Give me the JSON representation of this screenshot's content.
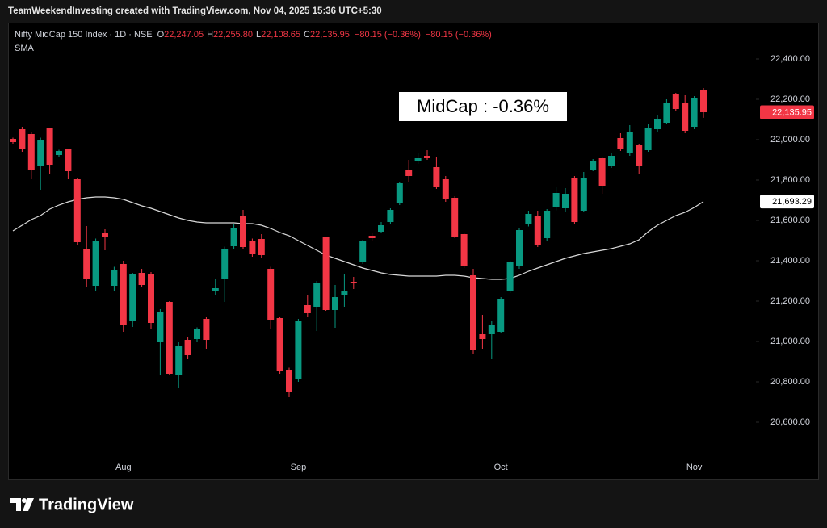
{
  "header": "TeamWeekendInvesting created with TradingView.com, Nov 04, 2025 15:36 UTC+5:30",
  "chart_data": {
    "type": "candlestick",
    "title": "Nifty MidCap 150 Index · 1D · NSE",
    "legend_items": [
      {
        "key": "O",
        "text": "22,247.05"
      },
      {
        "key": "H",
        "text": "22,255.80"
      },
      {
        "key": "L",
        "text": "22,108.65"
      },
      {
        "key": "C",
        "text": "22,135.95"
      }
    ],
    "changes": [
      "−80.15 (−0.36%)",
      "−80.15 (−0.36%)"
    ],
    "annotation": "MidCap : -0.36%",
    "up_color": "#089981",
    "down_color": "#f23645",
    "categories": [
      null,
      null,
      null,
      null,
      null,
      null,
      null,
      null,
      null,
      null,
      null,
      null,
      "Aug",
      null,
      null,
      null,
      null,
      null,
      null,
      null,
      null,
      null,
      null,
      null,
      null,
      null,
      null,
      null,
      null,
      null,
      null,
      "Sep",
      null,
      null,
      null,
      null,
      null,
      null,
      null,
      null,
      null,
      null,
      null,
      null,
      null,
      null,
      null,
      null,
      null,
      null,
      null,
      null,
      null,
      "Oct",
      null,
      null,
      null,
      null,
      null,
      null,
      null,
      null,
      null,
      null,
      null,
      null,
      null,
      null,
      null,
      null,
      null,
      null,
      null,
      null,
      "Nov",
      null
    ],
    "open": [
      22004,
      22052,
      22028,
      21868,
      22056,
      21924,
      21952,
      21804,
      21460,
      21276,
      21540,
      21276,
      21384,
      21100,
      21340,
      21332,
      21000,
      21196,
      20832,
      21008,
      21012,
      21112,
      21248,
      21312,
      21472,
      21620,
      21500,
      21508,
      21360,
      21116,
      20860,
      20812,
      21180,
      21172,
      21516,
      21156,
      21232,
      21296,
      21392,
      21524,
      21544,
      21592,
      21684,
      21852,
      21892,
      21920,
      21864,
      21804,
      21712,
      21532,
      21328,
      21036,
      21036,
      21048,
      21248,
      21376,
      21580,
      21620,
      21512,
      21664,
      21660,
      21808,
      21648,
      21852,
      21908,
      21868,
      22008,
      21932,
      21972,
      21948,
      22052,
      22084,
      22224,
      22180,
      22064,
      22247.05
    ],
    "high": [
      22010,
      22064,
      22040,
      22010,
      22060,
      21950,
      21952,
      21808,
      21572,
      21510,
      21556,
      21370,
      21400,
      21340,
      21360,
      21344,
      21160,
      21200,
      21000,
      21020,
      21070,
      21120,
      21312,
      21470,
      21580,
      21652,
      21510,
      21532,
      21370,
      21120,
      20870,
      21112,
      21232,
      21300,
      21520,
      21280,
      21332,
      21320,
      21504,
      21540,
      21592,
      21660,
      21792,
      21900,
      21932,
      21948,
      21912,
      21820,
      21720,
      21536,
      21360,
      21132,
      21100,
      21220,
      21400,
      21560,
      21648,
      21648,
      21656,
      21764,
      21760,
      21820,
      21840,
      21904,
      21916,
      21932,
      22032,
      22072,
      21980,
      22080,
      22124,
      22200,
      22232,
      22220,
      22216,
      22255.8
    ],
    "low": [
      21980,
      21940,
      21804,
      21752,
      21832,
      21916,
      21804,
      21480,
      21272,
      21248,
      21452,
      21252,
      21048,
      21072,
      21270,
      21060,
      20832,
      20832,
      20772,
      20912,
      21000,
      20964,
      21232,
      21196,
      21460,
      21460,
      21420,
      21412,
      21060,
      20840,
      20724,
      20800,
      21120,
      21052,
      21152,
      21068,
      21172,
      21260,
      21384,
      21500,
      21536,
      21580,
      21676,
      21788,
      21880,
      21900,
      21756,
      21692,
      21512,
      21364,
      20940,
      20964,
      20912,
      21040,
      21240,
      21360,
      21570,
      21468,
      21500,
      21650,
      21640,
      21580,
      21640,
      21844,
      21732,
      21860,
      21944,
      21920,
      21828,
      21940,
      22040,
      22076,
      22140,
      22032,
      22052,
      22108.65
    ],
    "close": [
      21988,
      21952,
      21852,
      22000,
      21876,
      21944,
      21844,
      21492,
      21308,
      21500,
      21520,
      21356,
      21084,
      21332,
      21280,
      21092,
      21144,
      20840,
      20980,
      20932,
      21060,
      21008,
      21264,
      21460,
      21560,
      21468,
      21432,
      21428,
      21108,
      20852,
      20748,
      21104,
      21140,
      21288,
      21156,
      21220,
      21248,
      21292,
      21496,
      21512,
      21576,
      21652,
      21784,
      21820,
      21908,
      21908,
      21764,
      21708,
      21520,
      21372,
      20956,
      21012,
      21080,
      21212,
      21392,
      21552,
      21632,
      21476,
      21648,
      21736,
      21732,
      21592,
      21808,
      21896,
      21772,
      21920,
      21956,
      22040,
      21872,
      22060,
      22100,
      22184,
      22152,
      22044,
      22208,
      22135.95
    ],
    "sma": {
      "name": "SMA",
      "color": "#d9d9d9",
      "values": [
        21548,
        21576,
        21604,
        21624,
        21656,
        21676,
        21692,
        21704,
        21712,
        21716,
        21716,
        21712,
        21704,
        21688,
        21672,
        21660,
        21644,
        21628,
        21612,
        21600,
        21592,
        21588,
        21588,
        21588,
        21588,
        21584,
        21584,
        21576,
        21560,
        21540,
        21524,
        21500,
        21476,
        21452,
        21428,
        21412,
        21396,
        21380,
        21364,
        21352,
        21340,
        21332,
        21328,
        21324,
        21324,
        21324,
        21324,
        21328,
        21328,
        21324,
        21316,
        21312,
        21308,
        21308,
        21312,
        21328,
        21348,
        21364,
        21380,
        21396,
        21412,
        21424,
        21436,
        21444,
        21452,
        21460,
        21472,
        21484,
        21504,
        21544,
        21576,
        21600,
        21624,
        21640,
        21664,
        21693.29
      ]
    },
    "price_tags": [
      {
        "value": 22135.95,
        "label": "22,135.95",
        "color": "#f23645",
        "text_color": "#ffffff"
      },
      {
        "value": 21693.29,
        "label": "21,693.29",
        "color": "#ffffff",
        "text_color": "#000000"
      }
    ],
    "ylim": [
      20432,
      22552
    ],
    "yticks": [
      {
        "value": 20600,
        "label": "20,600.00"
      },
      {
        "value": 20800,
        "label": "20,800.00"
      },
      {
        "value": 21000,
        "label": "21,000.00"
      },
      {
        "value": 21200,
        "label": "21,200.00"
      },
      {
        "value": 21400,
        "label": "21,400.00"
      },
      {
        "value": 21600,
        "label": "21,600.00"
      },
      {
        "value": 21800,
        "label": "21,800.00"
      },
      {
        "value": 22000,
        "label": "22,000.00"
      },
      {
        "value": 22200,
        "label": "22,200.00"
      },
      {
        "value": 22400,
        "label": "22,400.00"
      }
    ],
    "grid": false
  },
  "footer": "TradingView"
}
